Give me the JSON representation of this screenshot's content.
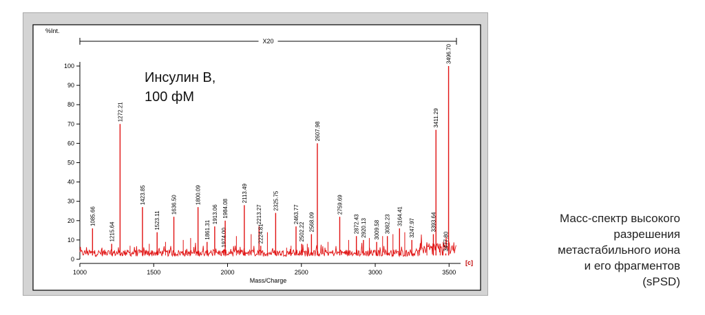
{
  "chart_data": {
    "type": "line",
    "title": "",
    "ylabel": "%Int.",
    "xlabel": "Mass/Charge",
    "xlim": [
      1000,
      3550
    ],
    "ylim": [
      0,
      100
    ],
    "x_ticks": [
      1000,
      1500,
      2000,
      2500,
      3000,
      3500
    ],
    "y_ticks": [
      0,
      10,
      20,
      30,
      40,
      50,
      60,
      70,
      80,
      90,
      100
    ],
    "bracket_label": "X20",
    "bracket_range": [
      1000,
      3550
    ],
    "edge_marker": "[c]",
    "annotation": [
      "Инсулин B,",
      "100 фМ"
    ],
    "line_color": "#e01010",
    "grid": false,
    "peaks": [
      {
        "label": "1085.66",
        "x": 1085.66,
        "y": 16
      },
      {
        "label": "1215.64",
        "x": 1215.64,
        "y": 8
      },
      {
        "label": "1272.21",
        "x": 1272.21,
        "y": 70
      },
      {
        "label": "1423.85",
        "x": 1423.85,
        "y": 27
      },
      {
        "label": "1523.11",
        "x": 1523.11,
        "y": 14
      },
      {
        "label": "1636.50",
        "x": 1636.5,
        "y": 22
      },
      {
        "label": "1800.09",
        "x": 1800.09,
        "y": 27
      },
      {
        "label": "1861.31",
        "x": 1861.31,
        "y": 9
      },
      {
        "label": "1913.06",
        "x": 1913.06,
        "y": 17
      },
      {
        "label": "1974.00",
        "x": 1974.0,
        "y": 5
      },
      {
        "label": "1984.08",
        "x": 1984.08,
        "y": 20
      },
      {
        "label": "2113.49",
        "x": 2113.49,
        "y": 28
      },
      {
        "label": "2213.27",
        "x": 2213.27,
        "y": 17
      },
      {
        "label": "2224.81",
        "x": 2224.81,
        "y": 7
      },
      {
        "label": "2325.75",
        "x": 2325.75,
        "y": 24
      },
      {
        "label": "2463.77",
        "x": 2463.77,
        "y": 17
      },
      {
        "label": "2502.22",
        "x": 2502.22,
        "y": 8
      },
      {
        "label": "2568.09",
        "x": 2568.09,
        "y": 13
      },
      {
        "label": "2607.98",
        "x": 2607.98,
        "y": 60
      },
      {
        "label": "2759.69",
        "x": 2759.69,
        "y": 22
      },
      {
        "label": "2872.43",
        "x": 2872.43,
        "y": 12
      },
      {
        "label": "2920.13",
        "x": 2920.13,
        "y": 10
      },
      {
        "label": "3009.58",
        "x": 3009.58,
        "y": 9
      },
      {
        "label": "3082.23",
        "x": 3082.23,
        "y": 12
      },
      {
        "label": "3164.41",
        "x": 3164.41,
        "y": 16
      },
      {
        "label": "3247.97",
        "x": 3247.97,
        "y": 10
      },
      {
        "label": "3393.64",
        "x": 3393.64,
        "y": 13
      },
      {
        "label": "3411.29",
        "x": 3411.29,
        "y": 67
      },
      {
        "label": "3477.80",
        "x": 3477.8,
        "y": 3
      },
      {
        "label": "3496.70",
        "x": 3496.7,
        "y": 100
      }
    ]
  },
  "caption": {
    "lines": [
      "Масс-спектр высокого",
      "разрешения",
      "метастабильного иона",
      "и его фрагментов",
      "(sPSD)"
    ]
  }
}
